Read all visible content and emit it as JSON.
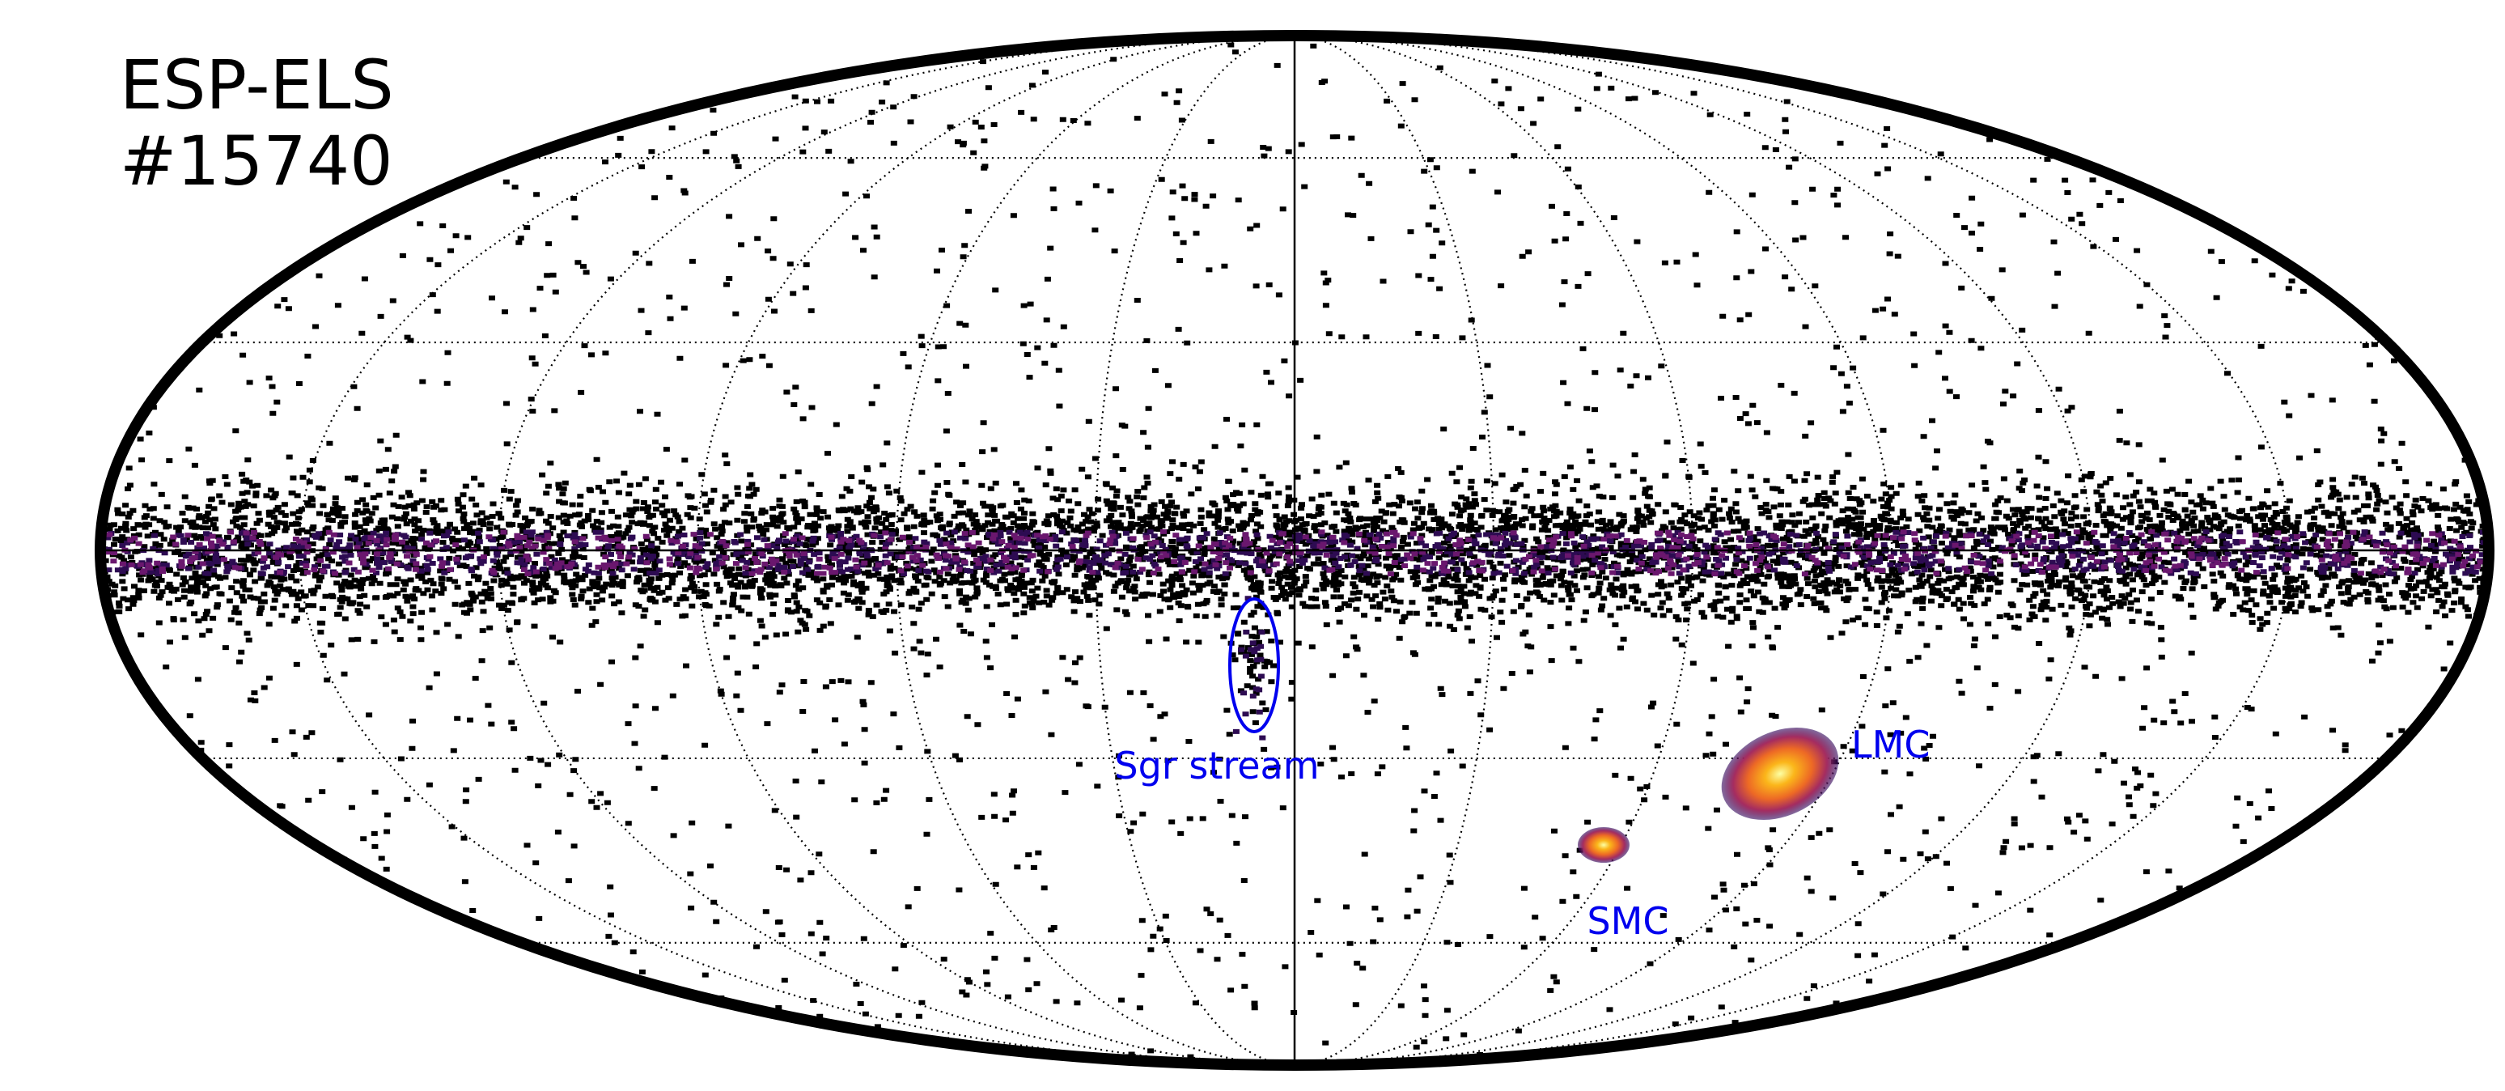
{
  "title": {
    "lines": [
      "ESP-ELS",
      "#15740"
    ]
  },
  "annotations": [
    {
      "label": "Sgr stream"
    },
    {
      "label": "LMC"
    },
    {
      "label": "SMC"
    }
  ]
}
